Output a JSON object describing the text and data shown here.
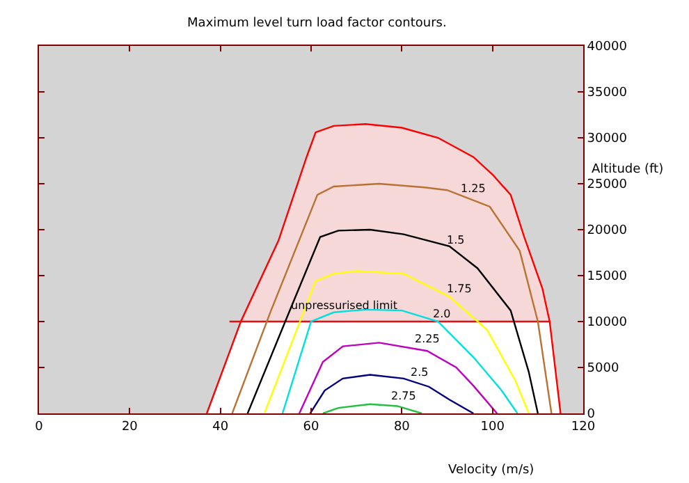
{
  "chart_data": {
    "type": "line",
    "title": "Maximum level turn load factor contours.",
    "xlabel": "Velocity (m/s)",
    "ylabel": "Altitude (ft)",
    "xlim": [
      0,
      120
    ],
    "xticks": [
      0,
      20,
      40,
      60,
      80,
      100,
      120
    ],
    "ylim": [
      0,
      40000
    ],
    "yticks": [
      0,
      5000,
      10000,
      15000,
      20000,
      25000,
      30000,
      35000,
      40000
    ],
    "grid": false,
    "marker": "none",
    "line_style": "solid",
    "series": [
      {
        "type": "area",
        "color": "#f6d8d8",
        "x": [
          44.5,
          52.8,
          59,
          61,
          65,
          72,
          80,
          88,
          95.8,
          100,
          104,
          107,
          111,
          112.6
        ],
        "values": [
          10000,
          18800,
          27900,
          30600,
          31300,
          31500,
          31100,
          30000,
          27900,
          26000,
          23800,
          19200,
          13600,
          10000
        ]
      },
      {
        "type": "area",
        "color": "#ffffff",
        "x": [
          44.5,
          37,
          115,
          112.6,
          44.5
        ],
        "values": [
          10000,
          0,
          0,
          10000,
          10000
        ]
      },
      {
        "color": "#ff0000",
        "x": [
          37,
          44.5,
          52.8,
          59,
          61,
          65,
          72,
          80,
          88,
          95.8,
          100,
          104,
          107,
          111,
          112.6,
          115
        ],
        "values": [
          0,
          10000,
          18800,
          27900,
          30600,
          31300,
          31500,
          31100,
          30000,
          27900,
          26000,
          23800,
          19200,
          13600,
          10000,
          0
        ]
      },
      {
        "color": "#e01010",
        "x": [
          42,
          112.6
        ],
        "values": [
          10000,
          10000
        ]
      },
      {
        "color": "#b87333",
        "x": [
          42.6,
          51,
          61.4,
          65,
          75,
          85,
          90,
          99.4,
          106,
          110,
          113
        ],
        "values": [
          0,
          11000,
          23800,
          24700,
          25000,
          24600,
          24300,
          22500,
          17700,
          10000,
          0
        ]
      },
      {
        "color": "#000000",
        "x": [
          46,
          54.3,
          62,
          66,
          73,
          80.4,
          90.5,
          96.7,
          104,
          108,
          110
        ],
        "values": [
          0,
          10000,
          19200,
          19900,
          20000,
          19500,
          18200,
          15800,
          11200,
          4500,
          0
        ]
      },
      {
        "color": "#ffff00",
        "x": [
          49.7,
          61,
          65,
          70,
          80.4,
          90.5,
          98.8,
          105,
          108
        ],
        "values": [
          0,
          14400,
          15200,
          15500,
          15200,
          12700,
          9100,
          3600,
          0
        ]
      },
      {
        "color": "#00e0e0",
        "x": [
          53.7,
          60,
          65,
          72,
          80,
          88,
          96,
          102,
          105.5
        ],
        "values": [
          0,
          10000,
          11000,
          11300,
          11200,
          10000,
          6000,
          2500,
          0
        ]
      },
      {
        "color": "#c000c0",
        "x": [
          57.4,
          62.6,
          67,
          75,
          85.6,
          92,
          95.8,
          101
        ],
        "values": [
          0,
          5600,
          7300,
          7700,
          6800,
          5000,
          3000,
          0
        ]
      },
      {
        "color": "#000080",
        "x": [
          59.8,
          63,
          67,
          73,
          80.4,
          86,
          90.5,
          95.8
        ],
        "values": [
          0,
          2500,
          3800,
          4200,
          3800,
          2900,
          1500,
          0
        ]
      },
      {
        "color": "#20c040",
        "x": [
          62.6,
          66,
          73,
          79,
          84.4
        ],
        "values": [
          0,
          600,
          1000,
          800,
          0
        ]
      }
    ],
    "annotations": [
      {
        "text": "unpressurised limit",
        "x": 55,
        "y": 10500
      },
      {
        "text": "1.25",
        "x": 95.8,
        "y": 23200
      },
      {
        "text": "1.5",
        "x": 92,
        "y": 17600
      },
      {
        "text": "1.75",
        "x": 92.7,
        "y": 12300
      },
      {
        "text": "2.0",
        "x": 89,
        "y": 9500
      },
      {
        "text": "2.25",
        "x": 85.6,
        "y": 6800
      },
      {
        "text": "2.5",
        "x": 84,
        "y": 3200
      },
      {
        "text": "2.75",
        "x": 80.4,
        "y": 600
      }
    ]
  }
}
